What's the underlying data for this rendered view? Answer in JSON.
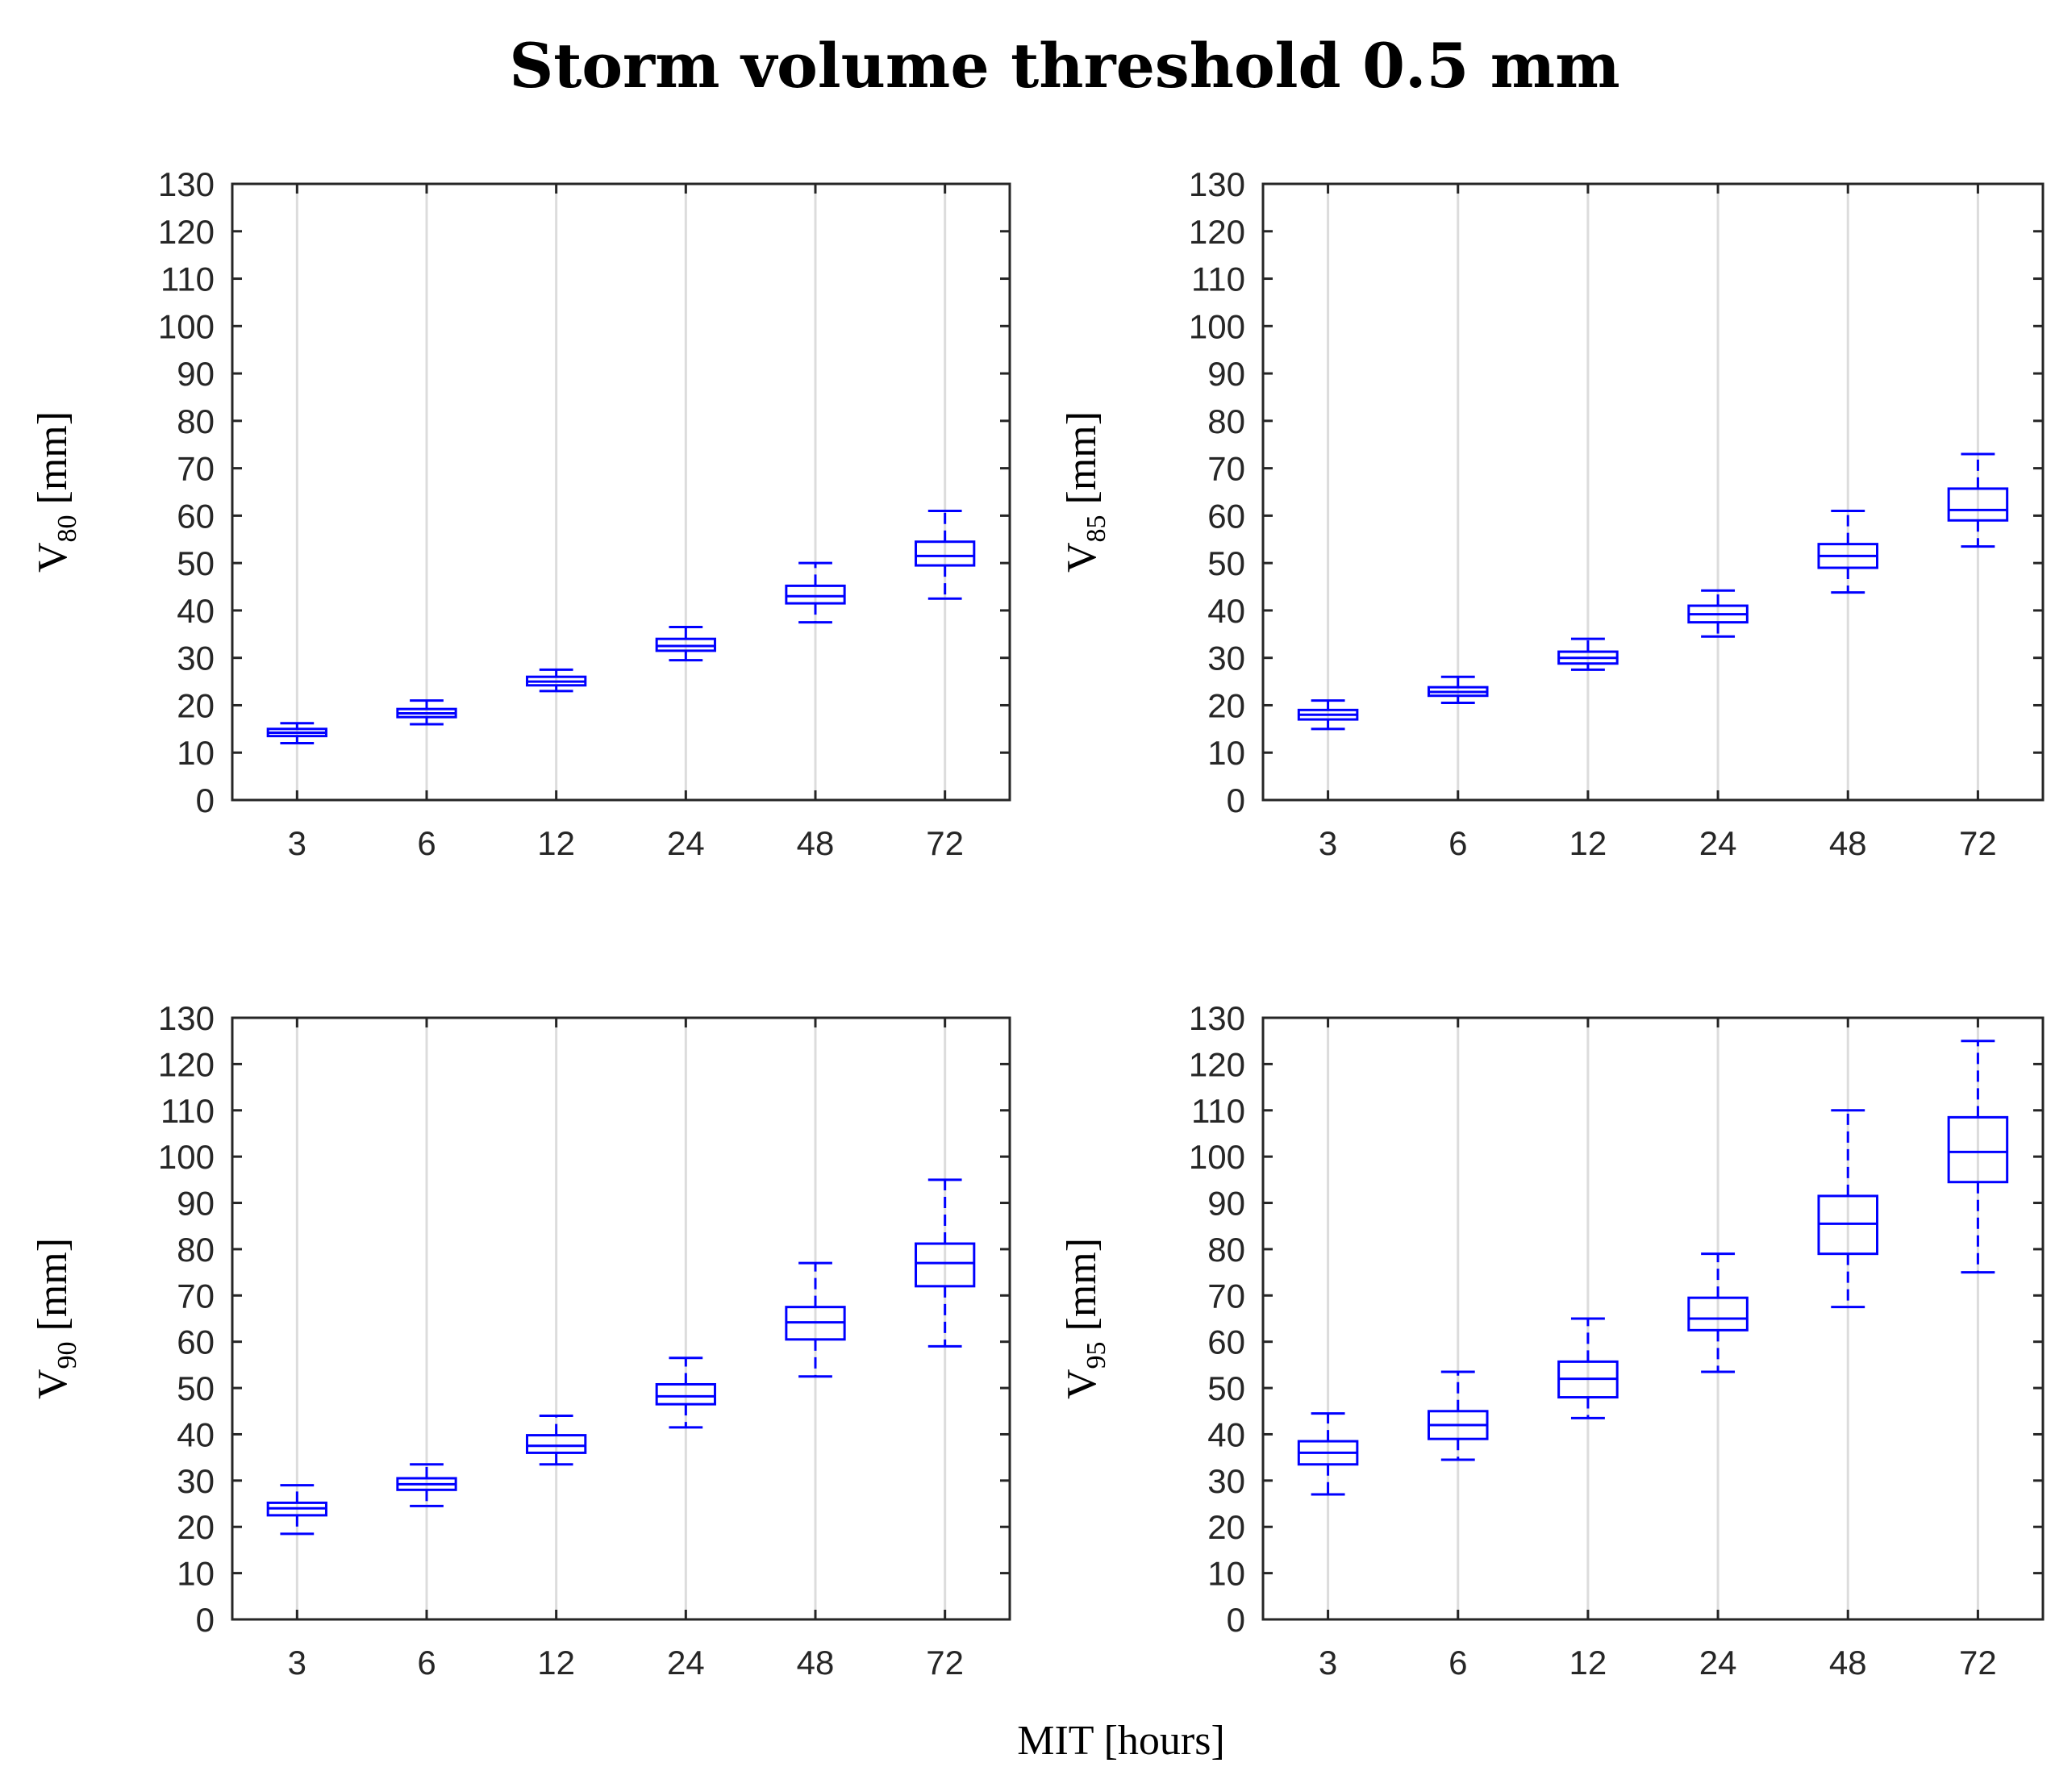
{
  "figure": {
    "title": "Storm volume threshold 0.5 mm",
    "xlabel": "MIT [hours]"
  },
  "colors": {
    "box": "#0000ff",
    "grid": "#dcdcdc",
    "axes": "#262626"
  },
  "chart_data": [
    {
      "type": "box",
      "ylabel_main": "V",
      "ylabel_sub": "80",
      "ylabel_unit": " [mm]",
      "categories": [
        "3",
        "6",
        "12",
        "24",
        "48",
        "72"
      ],
      "ylim": [
        0,
        130
      ],
      "yticks": [
        "0",
        "10",
        "20",
        "30",
        "40",
        "50",
        "60",
        "70",
        "80",
        "90",
        "100",
        "110",
        "120",
        "130"
      ],
      "grid": "vertical",
      "boxes": [
        {
          "min": 12,
          "q1": 13.5,
          "median": 14.2,
          "q3": 15,
          "max": 16.2
        },
        {
          "min": 16,
          "q1": 17.5,
          "median": 18.3,
          "q3": 19.2,
          "max": 21
        },
        {
          "min": 23,
          "q1": 24.2,
          "median": 25,
          "q3": 26,
          "max": 27.5
        },
        {
          "min": 29.5,
          "q1": 31.5,
          "median": 32.5,
          "q3": 34,
          "max": 36.5
        },
        {
          "min": 37.5,
          "q1": 41.5,
          "median": 43,
          "q3": 45.2,
          "max": 50
        },
        {
          "min": 42.5,
          "q1": 49.5,
          "median": 51.5,
          "q3": 54.5,
          "max": 61
        }
      ]
    },
    {
      "type": "box",
      "ylabel_main": "V",
      "ylabel_sub": "85",
      "ylabel_unit": " [mm]",
      "categories": [
        "3",
        "6",
        "12",
        "24",
        "48",
        "72"
      ],
      "ylim": [
        0,
        130
      ],
      "yticks": [
        "0",
        "10",
        "20",
        "30",
        "40",
        "50",
        "60",
        "70",
        "80",
        "90",
        "100",
        "110",
        "120",
        "130"
      ],
      "grid": "vertical",
      "boxes": [
        {
          "min": 15,
          "q1": 17,
          "median": 18,
          "q3": 19,
          "max": 21
        },
        {
          "min": 20.5,
          "q1": 22,
          "median": 22.8,
          "q3": 23.8,
          "max": 26
        },
        {
          "min": 27.5,
          "q1": 28.8,
          "median": 30,
          "q3": 31.3,
          "max": 34
        },
        {
          "min": 34.5,
          "q1": 37.5,
          "median": 39.2,
          "q3": 41,
          "max": 44.2
        },
        {
          "min": 43.8,
          "q1": 49,
          "median": 51.5,
          "q3": 54,
          "max": 61
        },
        {
          "min": 53.5,
          "q1": 59,
          "median": 61.2,
          "q3": 65.7,
          "max": 73
        }
      ]
    },
    {
      "type": "box",
      "ylabel_main": "V",
      "ylabel_sub": "90",
      "ylabel_unit": " [mm]",
      "categories": [
        "3",
        "6",
        "12",
        "24",
        "48",
        "72"
      ],
      "ylim": [
        0,
        130
      ],
      "yticks": [
        "0",
        "10",
        "20",
        "30",
        "40",
        "50",
        "60",
        "70",
        "80",
        "90",
        "100",
        "110",
        "120",
        "130"
      ],
      "grid": "vertical",
      "boxes": [
        {
          "min": 18.5,
          "q1": 22.5,
          "median": 24,
          "q3": 25.2,
          "max": 29
        },
        {
          "min": 24.5,
          "q1": 28,
          "median": 29.2,
          "q3": 30.5,
          "max": 33.5
        },
        {
          "min": 33.5,
          "q1": 36,
          "median": 37.5,
          "q3": 39.8,
          "max": 44
        },
        {
          "min": 41.5,
          "q1": 46.5,
          "median": 48.2,
          "q3": 50.8,
          "max": 56.5
        },
        {
          "min": 52.5,
          "q1": 60.5,
          "median": 64.2,
          "q3": 67.5,
          "max": 77
        },
        {
          "min": 59,
          "q1": 72,
          "median": 77,
          "q3": 81.2,
          "max": 95
        }
      ]
    },
    {
      "type": "box",
      "ylabel_main": "V",
      "ylabel_sub": "95",
      "ylabel_unit": " [mm]",
      "categories": [
        "3",
        "6",
        "12",
        "24",
        "48",
        "72"
      ],
      "ylim": [
        0,
        130
      ],
      "yticks": [
        "0",
        "10",
        "20",
        "30",
        "40",
        "50",
        "60",
        "70",
        "80",
        "90",
        "100",
        "110",
        "120",
        "130"
      ],
      "grid": "vertical",
      "boxes": [
        {
          "min": 27,
          "q1": 33.5,
          "median": 36,
          "q3": 38.5,
          "max": 44.5
        },
        {
          "min": 34.5,
          "q1": 39,
          "median": 42,
          "q3": 45,
          "max": 53.5
        },
        {
          "min": 43.5,
          "q1": 48,
          "median": 52,
          "q3": 55.7,
          "max": 65
        },
        {
          "min": 53.5,
          "q1": 62.5,
          "median": 65,
          "q3": 69.5,
          "max": 79
        },
        {
          "min": 67.5,
          "q1": 79,
          "median": 85.5,
          "q3": 91.5,
          "max": 110
        },
        {
          "min": 75,
          "q1": 94.5,
          "median": 101,
          "q3": 108.5,
          "max": 125
        }
      ]
    }
  ]
}
